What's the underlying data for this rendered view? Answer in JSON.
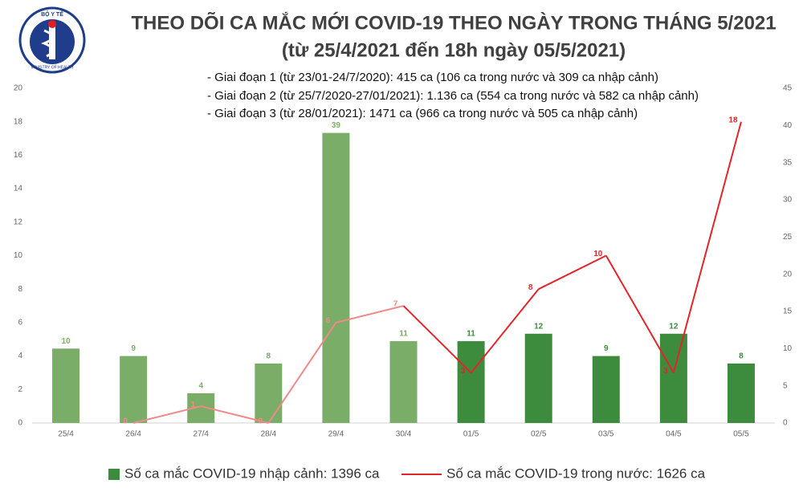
{
  "chart_data": {
    "type": "combo",
    "logo": [
      "BỘ Y TẾ",
      "MINISTRY OF HEALTH"
    ],
    "title": "THEO DÕI CA MẮC MỚI COVID-19 THEO NGÀY TRONG THÁNG 5/2021",
    "subtitle": "(từ 25/4/2021 đến 18h ngày 05/5/2021)",
    "annotations": [
      "- Giai đoạn 1 (từ 23/01-24/7/2020): 415 ca (106 ca trong nước và 309 ca nhập cảnh)",
      "- Giai đoạn 2 (từ 25/7/2020-27/01/2021): 1.136 ca (554 ca trong nước và 582 ca nhập cảnh)",
      "- Giai đoạn 3 (từ 28/01/2021): 1471 ca (966 ca trong nước và 505 ca nhập cảnh)"
    ],
    "categories": [
      "25/4",
      "26/4",
      "27/4",
      "28/4",
      "29/4",
      "30/4",
      "01/5",
      "02/5",
      "03/5",
      "04/5",
      "05/5"
    ],
    "series": [
      {
        "name": "Số ca mắc COVID-19 nhập cảnh: 1396 ca",
        "type": "bar",
        "axis": "y2",
        "color": "#3d8b3d",
        "colors": [
          "#7aad68",
          "#7aad68",
          "#7aad68",
          "#7aad68",
          "#7aad68",
          "#7aad68",
          "#3d8b3d",
          "#3d8b3d",
          "#3d8b3d",
          "#3d8b3d",
          "#3d8b3d"
        ],
        "values": [
          10,
          9,
          4,
          8,
          39,
          11,
          11,
          12,
          9,
          12,
          8
        ]
      },
      {
        "name": "Số ca mắc COVID-19 trong nước: 1626 ca",
        "type": "line",
        "color": "#e0262a",
        "colors": [
          null,
          "#f08a8a",
          "#f08a8a",
          "#f08a8a",
          "#f08a8a",
          "#f08a8a",
          "#e0262a",
          "#e0262a",
          "#e0262a",
          "#e0262a",
          "#e0262a"
        ],
        "values": [
          null,
          0,
          1,
          0,
          6,
          7,
          3,
          8,
          10,
          3,
          18
        ]
      }
    ],
    "ylim": [
      0,
      20
    ],
    "yticks": [
      0,
      2,
      4,
      6,
      8,
      10,
      12,
      14,
      16,
      18,
      20
    ],
    "y2lim": [
      0,
      45
    ],
    "y2ticks": [
      0,
      5,
      10,
      15,
      20,
      25,
      30,
      35,
      40,
      45
    ]
  }
}
